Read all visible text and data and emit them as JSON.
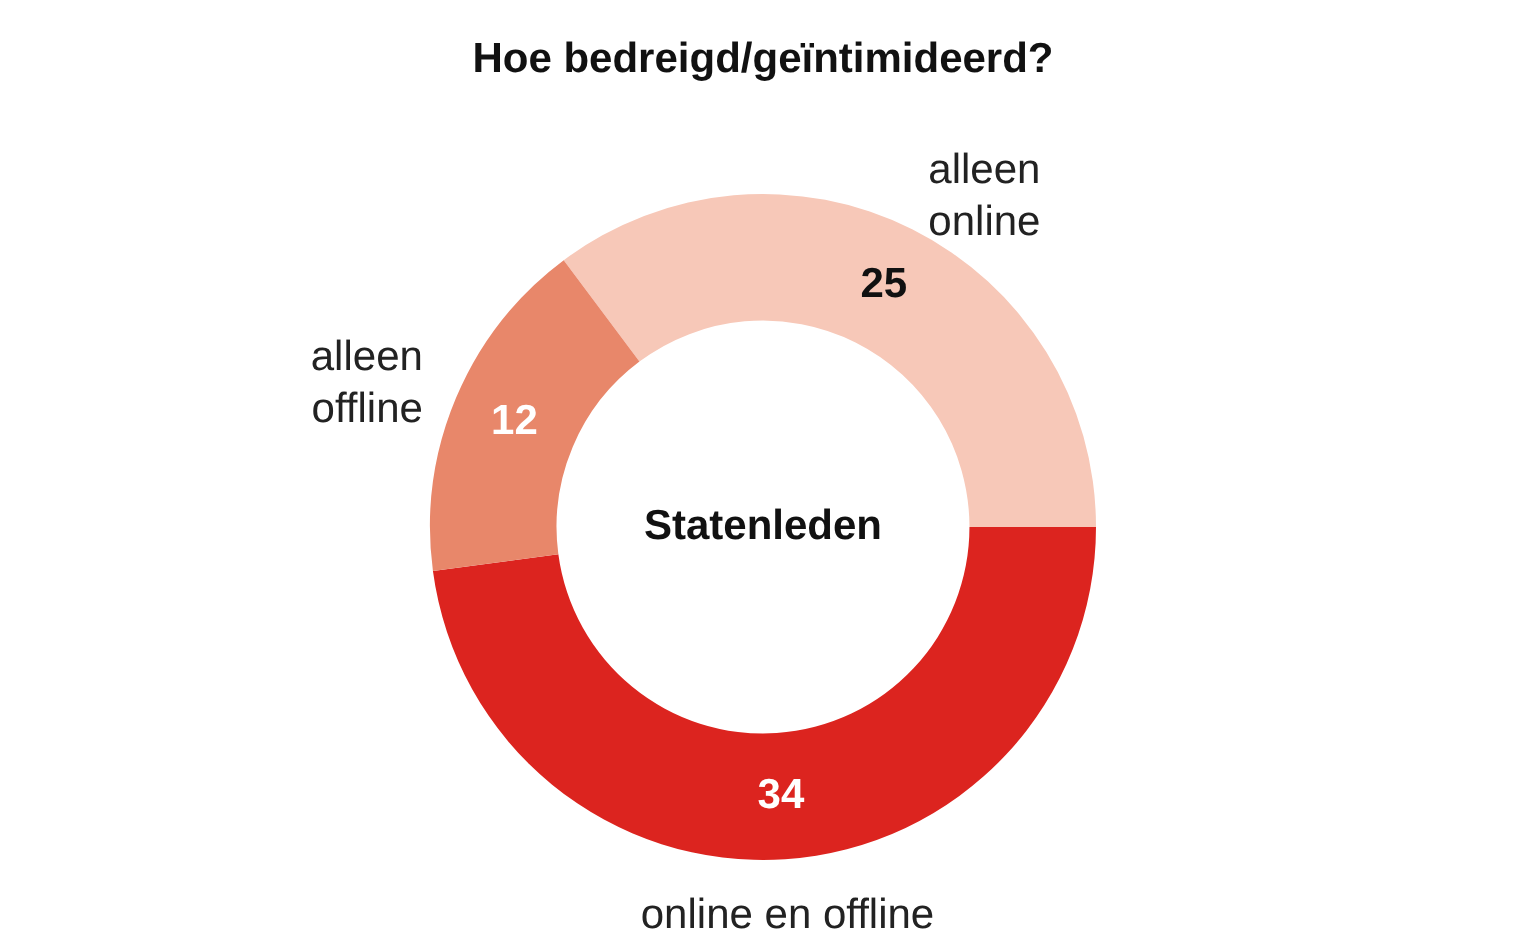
{
  "chart_data": {
    "type": "donut",
    "title": "Hoe bedreigd/geïntimideerd?",
    "categories": [
      "alleen online",
      "online en offline",
      "alleen offline"
    ],
    "values": [
      25,
      34,
      12
    ],
    "colors": [
      "#f7c8b8",
      "#dc241f",
      "#e8876a"
    ],
    "data_labels": true,
    "legend": false,
    "annotations": [
      "Statenleden"
    ]
  }
}
